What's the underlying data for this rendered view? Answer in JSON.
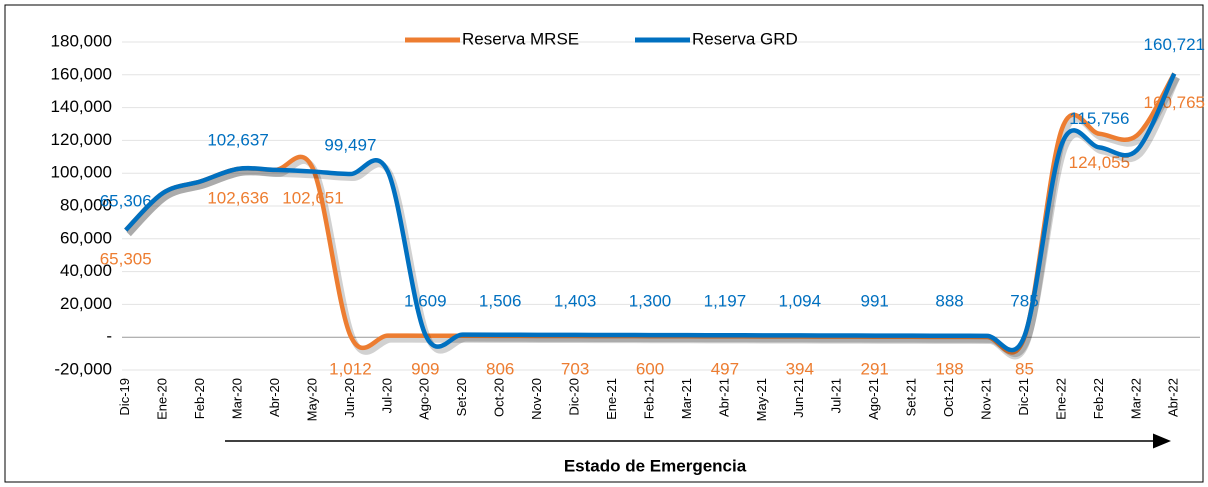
{
  "chart_data": {
    "type": "line",
    "categories": [
      "Dic-19",
      "Ene-20",
      "Feb-20",
      "Mar-20",
      "Abr-20",
      "May-20",
      "Jun-20",
      "Jul-20",
      "Ago-20",
      "Set-20",
      "Oct-20",
      "Nov-20",
      "Dic-20",
      "Ene-21",
      "Feb-21",
      "Mar-21",
      "Abr-21",
      "May-21",
      "Jun-21",
      "Jul-21",
      "Ago-21",
      "Set-21",
      "Oct-21",
      "Nov-21",
      "Dic-21",
      "Ene-22",
      "Feb-22",
      "Mar-22",
      "Abr-22"
    ],
    "series": [
      {
        "name": "Reserva MRSE",
        "color": "#ed7d31",
        "values": [
          65305,
          88000,
          95000,
          102636,
          102000,
          102651,
          1012,
          960,
          909,
          857,
          806,
          754,
          703,
          651,
          600,
          548,
          497,
          445,
          394,
          342,
          291,
          239,
          188,
          136,
          85,
          127000,
          124055,
          123000,
          160765
        ],
        "value_labels": [
          "65,305",
          null,
          null,
          "102,636",
          null,
          "102,651",
          "1,012",
          null,
          "909",
          null,
          "806",
          null,
          "703",
          null,
          "600",
          null,
          "497",
          null,
          "394",
          null,
          "291",
          null,
          "188",
          null,
          "85",
          null,
          "124,055",
          null,
          "160,765"
        ]
      },
      {
        "name": "Reserva GRD",
        "color": "#0070c0",
        "values": [
          65306,
          88000,
          95000,
          102637,
          102000,
          101000,
          99497,
          101000,
          1609,
          1557,
          1506,
          1454,
          1403,
          1351,
          1300,
          1248,
          1197,
          1145,
          1094,
          1042,
          991,
          939,
          888,
          836,
          785,
          118000,
          115756,
          114000,
          160721
        ],
        "value_labels": [
          "65,306",
          null,
          null,
          "102,637",
          null,
          null,
          "99,497",
          null,
          "1,609",
          null,
          "1,506",
          null,
          "1,403",
          null,
          "1,300",
          null,
          "1,197",
          null,
          "1,094",
          null,
          "991",
          null,
          "888",
          null,
          "785",
          null,
          "115,756",
          null,
          "160,721"
        ]
      }
    ],
    "ylim": [
      -20000,
      180000
    ],
    "yticks": [
      {
        "value": -20000,
        "label": "-20,000"
      },
      {
        "value": 0,
        "label": "-"
      },
      {
        "value": 20000,
        "label": "20,000"
      },
      {
        "value": 40000,
        "label": "40,000"
      },
      {
        "value": 60000,
        "label": "60,000"
      },
      {
        "value": 80000,
        "label": "80,000"
      },
      {
        "value": 100000,
        "label": "100,000"
      },
      {
        "value": 120000,
        "label": "120,000"
      },
      {
        "value": 140000,
        "label": "140,000"
      },
      {
        "value": 160000,
        "label": "160,000"
      },
      {
        "value": 180000,
        "label": "180,000"
      }
    ],
    "grid": true,
    "legend": "top",
    "annotation": "Estado de Emergencia"
  }
}
